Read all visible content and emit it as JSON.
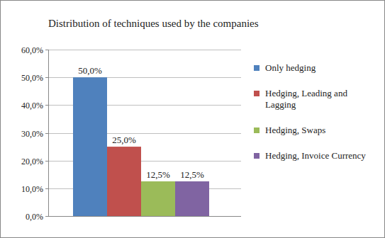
{
  "chart_data": {
    "type": "bar",
    "title": "Distribution of techniques used by the companies",
    "categories": [
      null
    ],
    "series": [
      {
        "name": "Only hedging",
        "color": "#4f81bd",
        "values": [
          50.0
        ],
        "value_labels": [
          "50,0%"
        ]
      },
      {
        "name": "Hedging, Leading and Lagging",
        "color": "#c0504d",
        "values": [
          25.0
        ],
        "value_labels": [
          "25,0%"
        ]
      },
      {
        "name": "Hedging, Swaps",
        "color": "#9bbb59",
        "values": [
          12.5
        ],
        "value_labels": [
          "12,5%"
        ]
      },
      {
        "name": "Hedging, Invoice Currency",
        "color": "#8064a2",
        "values": [
          12.5
        ],
        "value_labels": [
          "12,5%"
        ]
      }
    ],
    "ylim": [
      0,
      60
    ],
    "yticks": [
      {
        "value": 0,
        "label": "0,0%"
      },
      {
        "value": 10,
        "label": "10,0%"
      },
      {
        "value": 20,
        "label": "20,0%"
      },
      {
        "value": 30,
        "label": "30,0%"
      },
      {
        "value": 40,
        "label": "40,0%"
      },
      {
        "value": 50,
        "label": "50,0%"
      },
      {
        "value": 60,
        "label": "60,0%"
      }
    ],
    "grid": true,
    "legend": "right",
    "data_labels": true
  }
}
